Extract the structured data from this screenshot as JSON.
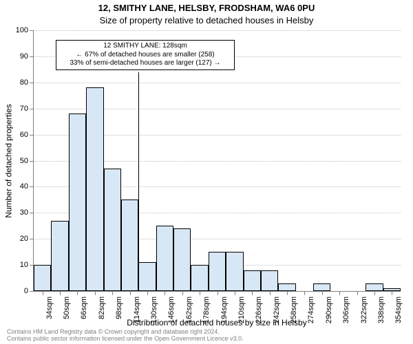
{
  "title": "12, SMITHY LANE, HELSBY, FRODSHAM, WA6 0PU",
  "subtitle": "Size of property relative to detached houses in Helsby",
  "y_axis": {
    "label": "Number of detached properties",
    "min": 0,
    "max": 100,
    "step": 10
  },
  "x_axis": {
    "label": "Distribution of detached houses by size in Helsby",
    "categories": [
      "34sqm",
      "50sqm",
      "66sqm",
      "82sqm",
      "98sqm",
      "114sqm",
      "130sqm",
      "146sqm",
      "162sqm",
      "178sqm",
      "194sqm",
      "210sqm",
      "226sqm",
      "242sqm",
      "258sqm",
      "274sqm",
      "290sqm",
      "306sqm",
      "322sqm",
      "338sqm",
      "354sqm"
    ]
  },
  "chart": {
    "type": "histogram",
    "values": [
      10,
      27,
      68,
      78,
      47,
      35,
      11,
      25,
      24,
      10,
      15,
      15,
      8,
      8,
      3,
      0,
      3,
      0,
      0,
      3,
      1
    ],
    "bar_fill": "#d8e7f5",
    "bar_border": "#000000",
    "grid_color": "#c0c0c0",
    "axis_color": "#808080",
    "background": "#ffffff",
    "title_fontsize": 13,
    "subtitle_fontsize": 13,
    "tick_fontsize": 11,
    "label_fontsize": 12,
    "annotation_fontsize": 10
  },
  "marker": {
    "category_index_after": 5,
    "height_value": 84
  },
  "annotation": {
    "line1": "12 SMITHY LANE: 128sqm",
    "line2": "← 67% of detached houses are smaller (258)",
    "line3": "33% of semi-detached houses are larger (127) →"
  },
  "footer": {
    "line1": "Contains HM Land Registry data © Crown copyright and database right 2024.",
    "line2": "Contains public sector information licensed under the Open Government Licence v3.0."
  }
}
